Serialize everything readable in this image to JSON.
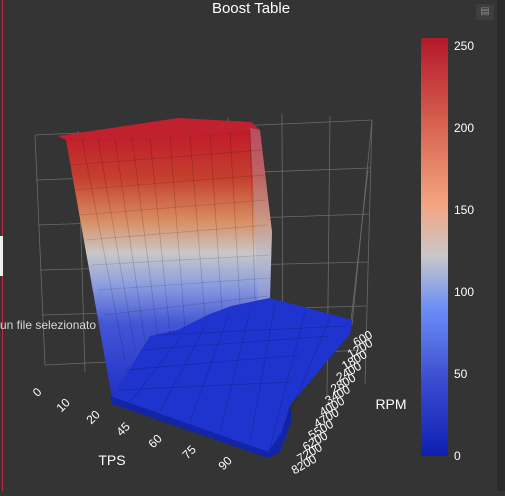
{
  "page": {
    "file_label": "un file selezionato"
  },
  "icons": {
    "toolbar": "bar-chart-icon"
  },
  "chart_data": {
    "type": "surface",
    "title": "Boost Table",
    "xlabel": "TPS",
    "ylabel": "RPM",
    "x_ticks": [
      "0",
      "10",
      "20",
      "45",
      "60",
      "75",
      "90"
    ],
    "y_ticks": [
      "600",
      "1200",
      "1800",
      "2400",
      "2800",
      "3400",
      "4000",
      "4700",
      "5500",
      "6200",
      "7200",
      "8200"
    ],
    "z_range": [
      0,
      255
    ],
    "colorbar": {
      "ticks": [
        "250",
        "200",
        "150",
        "100",
        "50",
        "0"
      ],
      "colors": [
        "#b2182b",
        "#d6604d",
        "#f4a582",
        "#c8c8c8",
        "#6a8df7",
        "#3b4ccf",
        "#0d1fb0"
      ]
    },
    "grid": true,
    "surface_note": "High boost at low RPM (255), dropping to ~10 at higher RPM",
    "z_values": [
      [
        255,
        255,
        255,
        255,
        255,
        255,
        255
      ],
      [
        255,
        255,
        255,
        255,
        255,
        255,
        255
      ],
      [
        255,
        255,
        255,
        255,
        255,
        255,
        255
      ],
      [
        10,
        10,
        10,
        10,
        12,
        14,
        16
      ],
      [
        10,
        10,
        10,
        10,
        12,
        14,
        16
      ],
      [
        10,
        10,
        10,
        10,
        10,
        12,
        14
      ],
      [
        10,
        10,
        10,
        10,
        10,
        12,
        14
      ],
      [
        10,
        10,
        10,
        10,
        10,
        10,
        12
      ],
      [
        10,
        10,
        10,
        10,
        10,
        10,
        10
      ],
      [
        10,
        10,
        10,
        10,
        10,
        10,
        10
      ],
      [
        10,
        10,
        10,
        10,
        10,
        10,
        10
      ],
      [
        10,
        10,
        10,
        10,
        10,
        10,
        10
      ]
    ]
  }
}
